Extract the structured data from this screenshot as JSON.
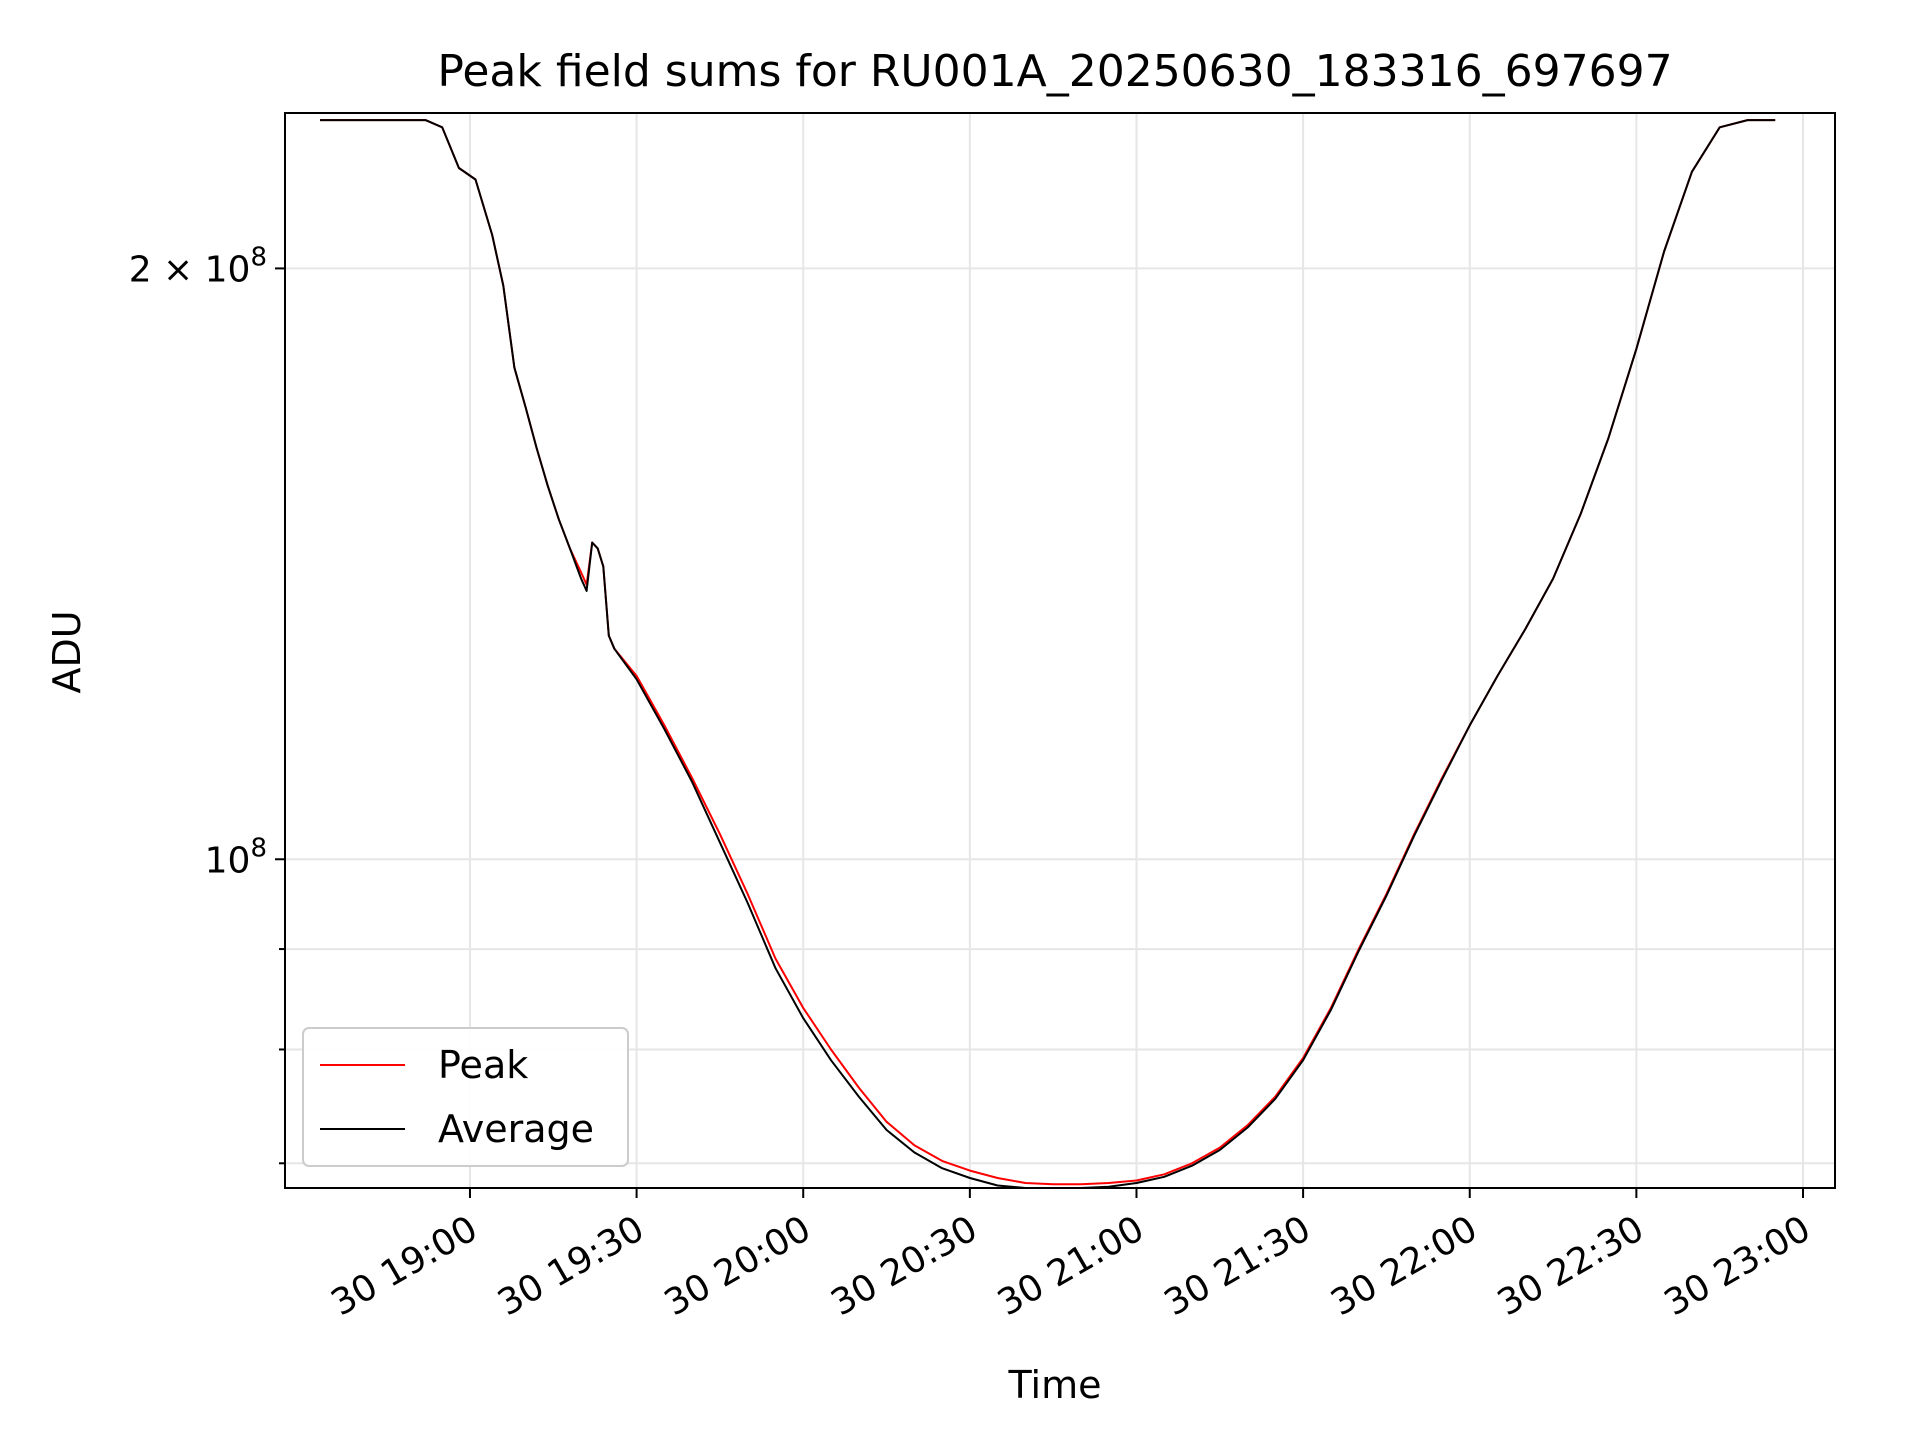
{
  "chart_data": {
    "type": "line",
    "title": "Peak field sums for RU001A_20250630_183316_697697",
    "xlabel": "Time",
    "ylabel": "ADU",
    "yscale": "log",
    "ylim": [
      68000000,
      240000000
    ],
    "xlim": [
      "2025-06-30 18:33",
      "2025-06-30 23:00"
    ],
    "x_ticks": [
      {
        "t": "2025-06-30 19:00",
        "label": "30 19:00"
      },
      {
        "t": "2025-06-30 19:30",
        "label": "30 19:30"
      },
      {
        "t": "2025-06-30 20:00",
        "label": "30 20:00"
      },
      {
        "t": "2025-06-30 20:30",
        "label": "30 20:30"
      },
      {
        "t": "2025-06-30 21:00",
        "label": "30 21:00"
      },
      {
        "t": "2025-06-30 21:30",
        "label": "30 21:30"
      },
      {
        "t": "2025-06-30 22:00",
        "label": "30 22:00"
      },
      {
        "t": "2025-06-30 22:30",
        "label": "30 22:30"
      },
      {
        "t": "2025-06-30 23:00",
        "label": "30 23:00"
      }
    ],
    "y_ticks_major": [
      {
        "v": 100000000,
        "base": "10",
        "exp": "8"
      },
      {
        "v": 200000000,
        "base": "2 × 10",
        "exp": "8"
      }
    ],
    "y_ticks_minor": [
      70000000,
      80000000,
      90000000
    ],
    "grid": true,
    "legend_position": "lower-left",
    "series": [
      {
        "name": "Peak",
        "color": "#ff0000",
        "x": [
          "2025-06-30 18:33",
          "2025-06-30 18:45",
          "2025-06-30 18:52",
          "2025-06-30 18:55",
          "2025-06-30 18:58",
          "2025-06-30 19:01",
          "2025-06-30 19:04",
          "2025-06-30 19:06",
          "2025-06-30 19:08",
          "2025-06-30 19:10",
          "2025-06-30 19:12",
          "2025-06-30 19:14",
          "2025-06-30 19:16",
          "2025-06-30 19:18",
          "2025-06-30 19:20",
          "2025-06-30 19:21",
          "2025-06-30 19:22",
          "2025-06-30 19:23",
          "2025-06-30 19:24",
          "2025-06-30 19:25",
          "2025-06-30 19:26",
          "2025-06-30 19:30",
          "2025-06-30 19:35",
          "2025-06-30 19:40",
          "2025-06-30 19:45",
          "2025-06-30 19:50",
          "2025-06-30 19:55",
          "2025-06-30 20:00",
          "2025-06-30 20:05",
          "2025-06-30 20:10",
          "2025-06-30 20:15",
          "2025-06-30 20:20",
          "2025-06-30 20:25",
          "2025-06-30 20:30",
          "2025-06-30 20:35",
          "2025-06-30 20:40",
          "2025-06-30 20:45",
          "2025-06-30 20:50",
          "2025-06-30 20:55",
          "2025-06-30 21:00",
          "2025-06-30 21:05",
          "2025-06-30 21:10",
          "2025-06-30 21:15",
          "2025-06-30 21:20",
          "2025-06-30 21:25",
          "2025-06-30 21:30",
          "2025-06-30 21:35",
          "2025-06-30 21:40",
          "2025-06-30 21:45",
          "2025-06-30 21:50",
          "2025-06-30 21:55",
          "2025-06-30 22:00",
          "2025-06-30 22:05",
          "2025-06-30 22:10",
          "2025-06-30 22:15",
          "2025-06-30 22:20",
          "2025-06-30 22:25",
          "2025-06-30 22:30",
          "2025-06-30 22:35",
          "2025-06-30 22:40",
          "2025-06-30 22:45",
          "2025-06-30 22:50",
          "2025-06-30 22:55"
        ],
        "values": [
          238000000,
          238000000,
          238000000,
          236000000,
          225000000,
          222000000,
          208000000,
          196000000,
          178000000,
          170000000,
          162000000,
          155000000,
          149000000,
          144000000,
          140000000,
          138000000,
          145000000,
          144000000,
          141000000,
          130000000,
          128000000,
          124000000,
          117000000,
          110000000,
          103000000,
          96000000,
          89000000,
          84000000,
          80000000,
          76500000,
          73500000,
          71500000,
          70200000,
          69400000,
          68800000,
          68400000,
          68300000,
          68300000,
          68400000,
          68600000,
          69100000,
          70000000,
          71300000,
          73200000,
          75700000,
          79200000,
          84000000,
          90000000,
          96000000,
          103000000,
          110000000,
          117000000,
          124000000,
          131000000,
          139000000,
          150000000,
          164000000,
          182000000,
          204000000,
          224000000,
          236000000,
          238000000,
          238000000
        ]
      },
      {
        "name": "Average",
        "color": "#000000",
        "x": [
          "2025-06-30 18:33",
          "2025-06-30 18:45",
          "2025-06-30 18:52",
          "2025-06-30 18:55",
          "2025-06-30 18:58",
          "2025-06-30 19:01",
          "2025-06-30 19:04",
          "2025-06-30 19:06",
          "2025-06-30 19:08",
          "2025-06-30 19:10",
          "2025-06-30 19:12",
          "2025-06-30 19:14",
          "2025-06-30 19:16",
          "2025-06-30 19:18",
          "2025-06-30 19:20",
          "2025-06-30 19:21",
          "2025-06-30 19:22",
          "2025-06-30 19:23",
          "2025-06-30 19:24",
          "2025-06-30 19:25",
          "2025-06-30 19:26",
          "2025-06-30 19:30",
          "2025-06-30 19:35",
          "2025-06-30 19:40",
          "2025-06-30 19:45",
          "2025-06-30 19:50",
          "2025-06-30 19:55",
          "2025-06-30 20:00",
          "2025-06-30 20:05",
          "2025-06-30 20:10",
          "2025-06-30 20:15",
          "2025-06-30 20:20",
          "2025-06-30 20:25",
          "2025-06-30 20:30",
          "2025-06-30 20:35",
          "2025-06-30 20:40",
          "2025-06-30 20:45",
          "2025-06-30 20:50",
          "2025-06-30 20:55",
          "2025-06-30 21:00",
          "2025-06-30 21:05",
          "2025-06-30 21:10",
          "2025-06-30 21:15",
          "2025-06-30 21:20",
          "2025-06-30 21:25",
          "2025-06-30 21:30",
          "2025-06-30 21:35",
          "2025-06-30 21:40",
          "2025-06-30 21:45",
          "2025-06-30 21:50",
          "2025-06-30 21:55",
          "2025-06-30 22:00",
          "2025-06-30 22:05",
          "2025-06-30 22:10",
          "2025-06-30 22:15",
          "2025-06-30 22:20",
          "2025-06-30 22:25",
          "2025-06-30 22:30",
          "2025-06-30 22:35",
          "2025-06-30 22:40",
          "2025-06-30 22:45",
          "2025-06-30 22:50",
          "2025-06-30 22:55"
        ],
        "values": [
          238000000,
          238000000,
          238000000,
          236000000,
          225000000,
          222000000,
          208000000,
          196000000,
          178000000,
          170000000,
          162000000,
          155000000,
          149000000,
          144000000,
          139000000,
          137000000,
          145000000,
          144000000,
          141000000,
          130000000,
          128000000,
          123500000,
          116500000,
          109500000,
          102000000,
          95000000,
          88000000,
          83000000,
          79000000,
          75700000,
          72800000,
          70900000,
          69600000,
          68800000,
          68200000,
          67900000,
          67800000,
          67900000,
          68100000,
          68400000,
          68900000,
          69800000,
          71100000,
          73000000,
          75500000,
          79000000,
          83800000,
          89800000,
          95800000,
          102800000,
          109800000,
          117000000,
          124000000,
          131000000,
          139000000,
          150000000,
          164000000,
          182000000,
          204000000,
          224000000,
          236000000,
          238000000,
          238000000
        ]
      }
    ]
  }
}
